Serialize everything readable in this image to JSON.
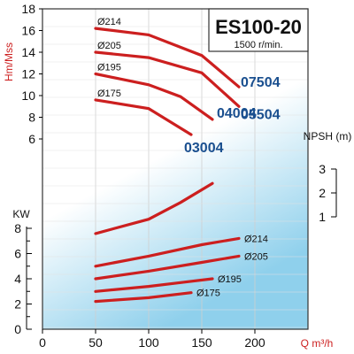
{
  "model": "ES100-20",
  "speed": "1500 r/min.",
  "colors": {
    "curve": "#cc1f1f",
    "impeller_label": "#1a4f8f",
    "axis": "#000000",
    "unit_label": "#cc1f1f",
    "frame": "#333333",
    "bg_top": "#ffffff",
    "bg_bottom": "#8fd0ec"
  },
  "chart_data": [
    {
      "type": "line",
      "title": "ES100-20",
      "subtitle": "1500 r/min.",
      "xlabel": "Q m³/h",
      "ylabel": "Hm/Mss",
      "xlim": [
        0,
        250
      ],
      "ylim": [
        6,
        18
      ],
      "x_ticks": [
        "0",
        "50",
        "100",
        "150",
        "200"
      ],
      "y_ticks": [
        "6",
        "8",
        "10",
        "12",
        "14",
        "16",
        "18"
      ],
      "grid": true,
      "series": [
        {
          "name": "Ø214",
          "model_label": "07504",
          "x": [
            50,
            100,
            150,
            185
          ],
          "y": [
            16.2,
            15.6,
            13.7,
            10.8
          ]
        },
        {
          "name": "Ø205",
          "model_label": "05504",
          "x": [
            50,
            100,
            150,
            185
          ],
          "y": [
            14.0,
            13.5,
            12.1,
            9.0
          ]
        },
        {
          "name": "Ø195",
          "model_label": "04004",
          "x": [
            50,
            100,
            130,
            160
          ],
          "y": [
            12.0,
            11.0,
            9.9,
            7.8
          ]
        },
        {
          "name": "Ø175",
          "model_label": "03004",
          "x": [
            50,
            100,
            140
          ],
          "y": [
            9.6,
            8.8,
            6.4
          ]
        }
      ]
    },
    {
      "type": "line",
      "ylabel": "NPSH (m)",
      "ylim": [
        1,
        3
      ],
      "y_ticks": [
        "1",
        "2",
        "3"
      ],
      "series": [
        {
          "x": [
            50,
            100,
            130,
            160
          ],
          "y": [
            0.3,
            0.9,
            1.6,
            2.4
          ]
        }
      ]
    },
    {
      "type": "line",
      "ylabel": "KW",
      "ylim": [
        0,
        8
      ],
      "y_ticks": [
        "0",
        "2",
        "4",
        "6",
        "8"
      ],
      "series": [
        {
          "name": "Ø214",
          "x": [
            50,
            100,
            150,
            185
          ],
          "y": [
            5.0,
            5.8,
            6.7,
            7.2
          ]
        },
        {
          "name": "Ø205",
          "x": [
            50,
            100,
            150,
            185
          ],
          "y": [
            4.0,
            4.6,
            5.3,
            5.8
          ]
        },
        {
          "name": "Ø195",
          "x": [
            50,
            100,
            130,
            160
          ],
          "y": [
            3.0,
            3.4,
            3.7,
            4.0
          ]
        },
        {
          "name": "Ø175",
          "x": [
            50,
            100,
            140
          ],
          "y": [
            2.2,
            2.5,
            2.9
          ]
        }
      ]
    }
  ]
}
